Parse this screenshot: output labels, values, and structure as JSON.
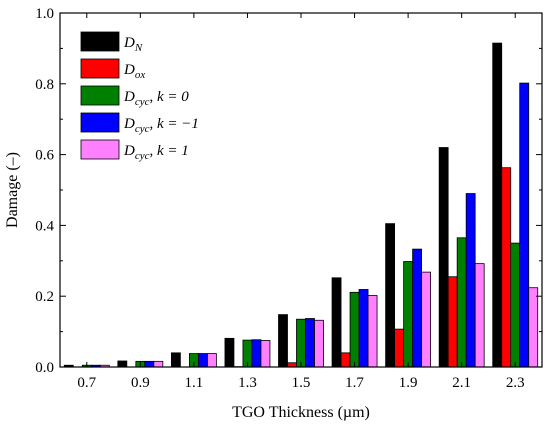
{
  "chart_data": {
    "type": "bar",
    "categories": [
      "0.7",
      "0.9",
      "1.1",
      "1.3",
      "1.5",
      "1.7",
      "1.9",
      "2.1",
      "2.3"
    ],
    "xlabel": "TGO Thickness (µm)",
    "ylabel": "Damage (–)",
    "ylim": [
      0,
      1.0
    ],
    "yticks": [
      "0.0",
      "0.2",
      "0.4",
      "0.6",
      "0.8",
      "1.0"
    ],
    "legend_position": "top-left",
    "series": [
      {
        "name": "D_N",
        "legend": {
          "base": "D",
          "sub": "N",
          "suffix_pre": "",
          "suffix_k": ""
        },
        "color": "#000000",
        "values": [
          0.005,
          0.017,
          0.04,
          0.081,
          0.148,
          0.252,
          0.405,
          0.62,
          0.915
        ]
      },
      {
        "name": "D_ox",
        "legend": {
          "base": "D",
          "sub": "ox",
          "suffix_pre": "",
          "suffix_k": ""
        },
        "color": "#ff0000",
        "values": [
          0.0,
          0.0,
          0.0,
          0.001,
          0.012,
          0.04,
          0.107,
          0.255,
          0.563
        ]
      },
      {
        "name": "D_cyc, k = 0",
        "legend": {
          "base": "D",
          "sub": "cyc",
          "suffix_pre": ", ",
          "suffix_k": "k = 0"
        },
        "color": "#008000",
        "values": [
          0.005,
          0.016,
          0.038,
          0.076,
          0.135,
          0.211,
          0.298,
          0.365,
          0.35
        ]
      },
      {
        "name": "D_cyc, k = -1",
        "legend": {
          "base": "D",
          "sub": "cyc",
          "suffix_pre": ", ",
          "suffix_k": "k = −1"
        },
        "color": "#0000ff",
        "values": [
          0.005,
          0.016,
          0.038,
          0.077,
          0.137,
          0.219,
          0.333,
          0.49,
          0.802
        ]
      },
      {
        "name": "D_cyc, k = 1",
        "legend": {
          "base": "D",
          "sub": "cyc",
          "suffix_pre": ", ",
          "suffix_k": "k = 1"
        },
        "color": "#ff80ff",
        "values": [
          0.005,
          0.016,
          0.038,
          0.075,
          0.132,
          0.202,
          0.268,
          0.292,
          0.224
        ]
      }
    ]
  }
}
